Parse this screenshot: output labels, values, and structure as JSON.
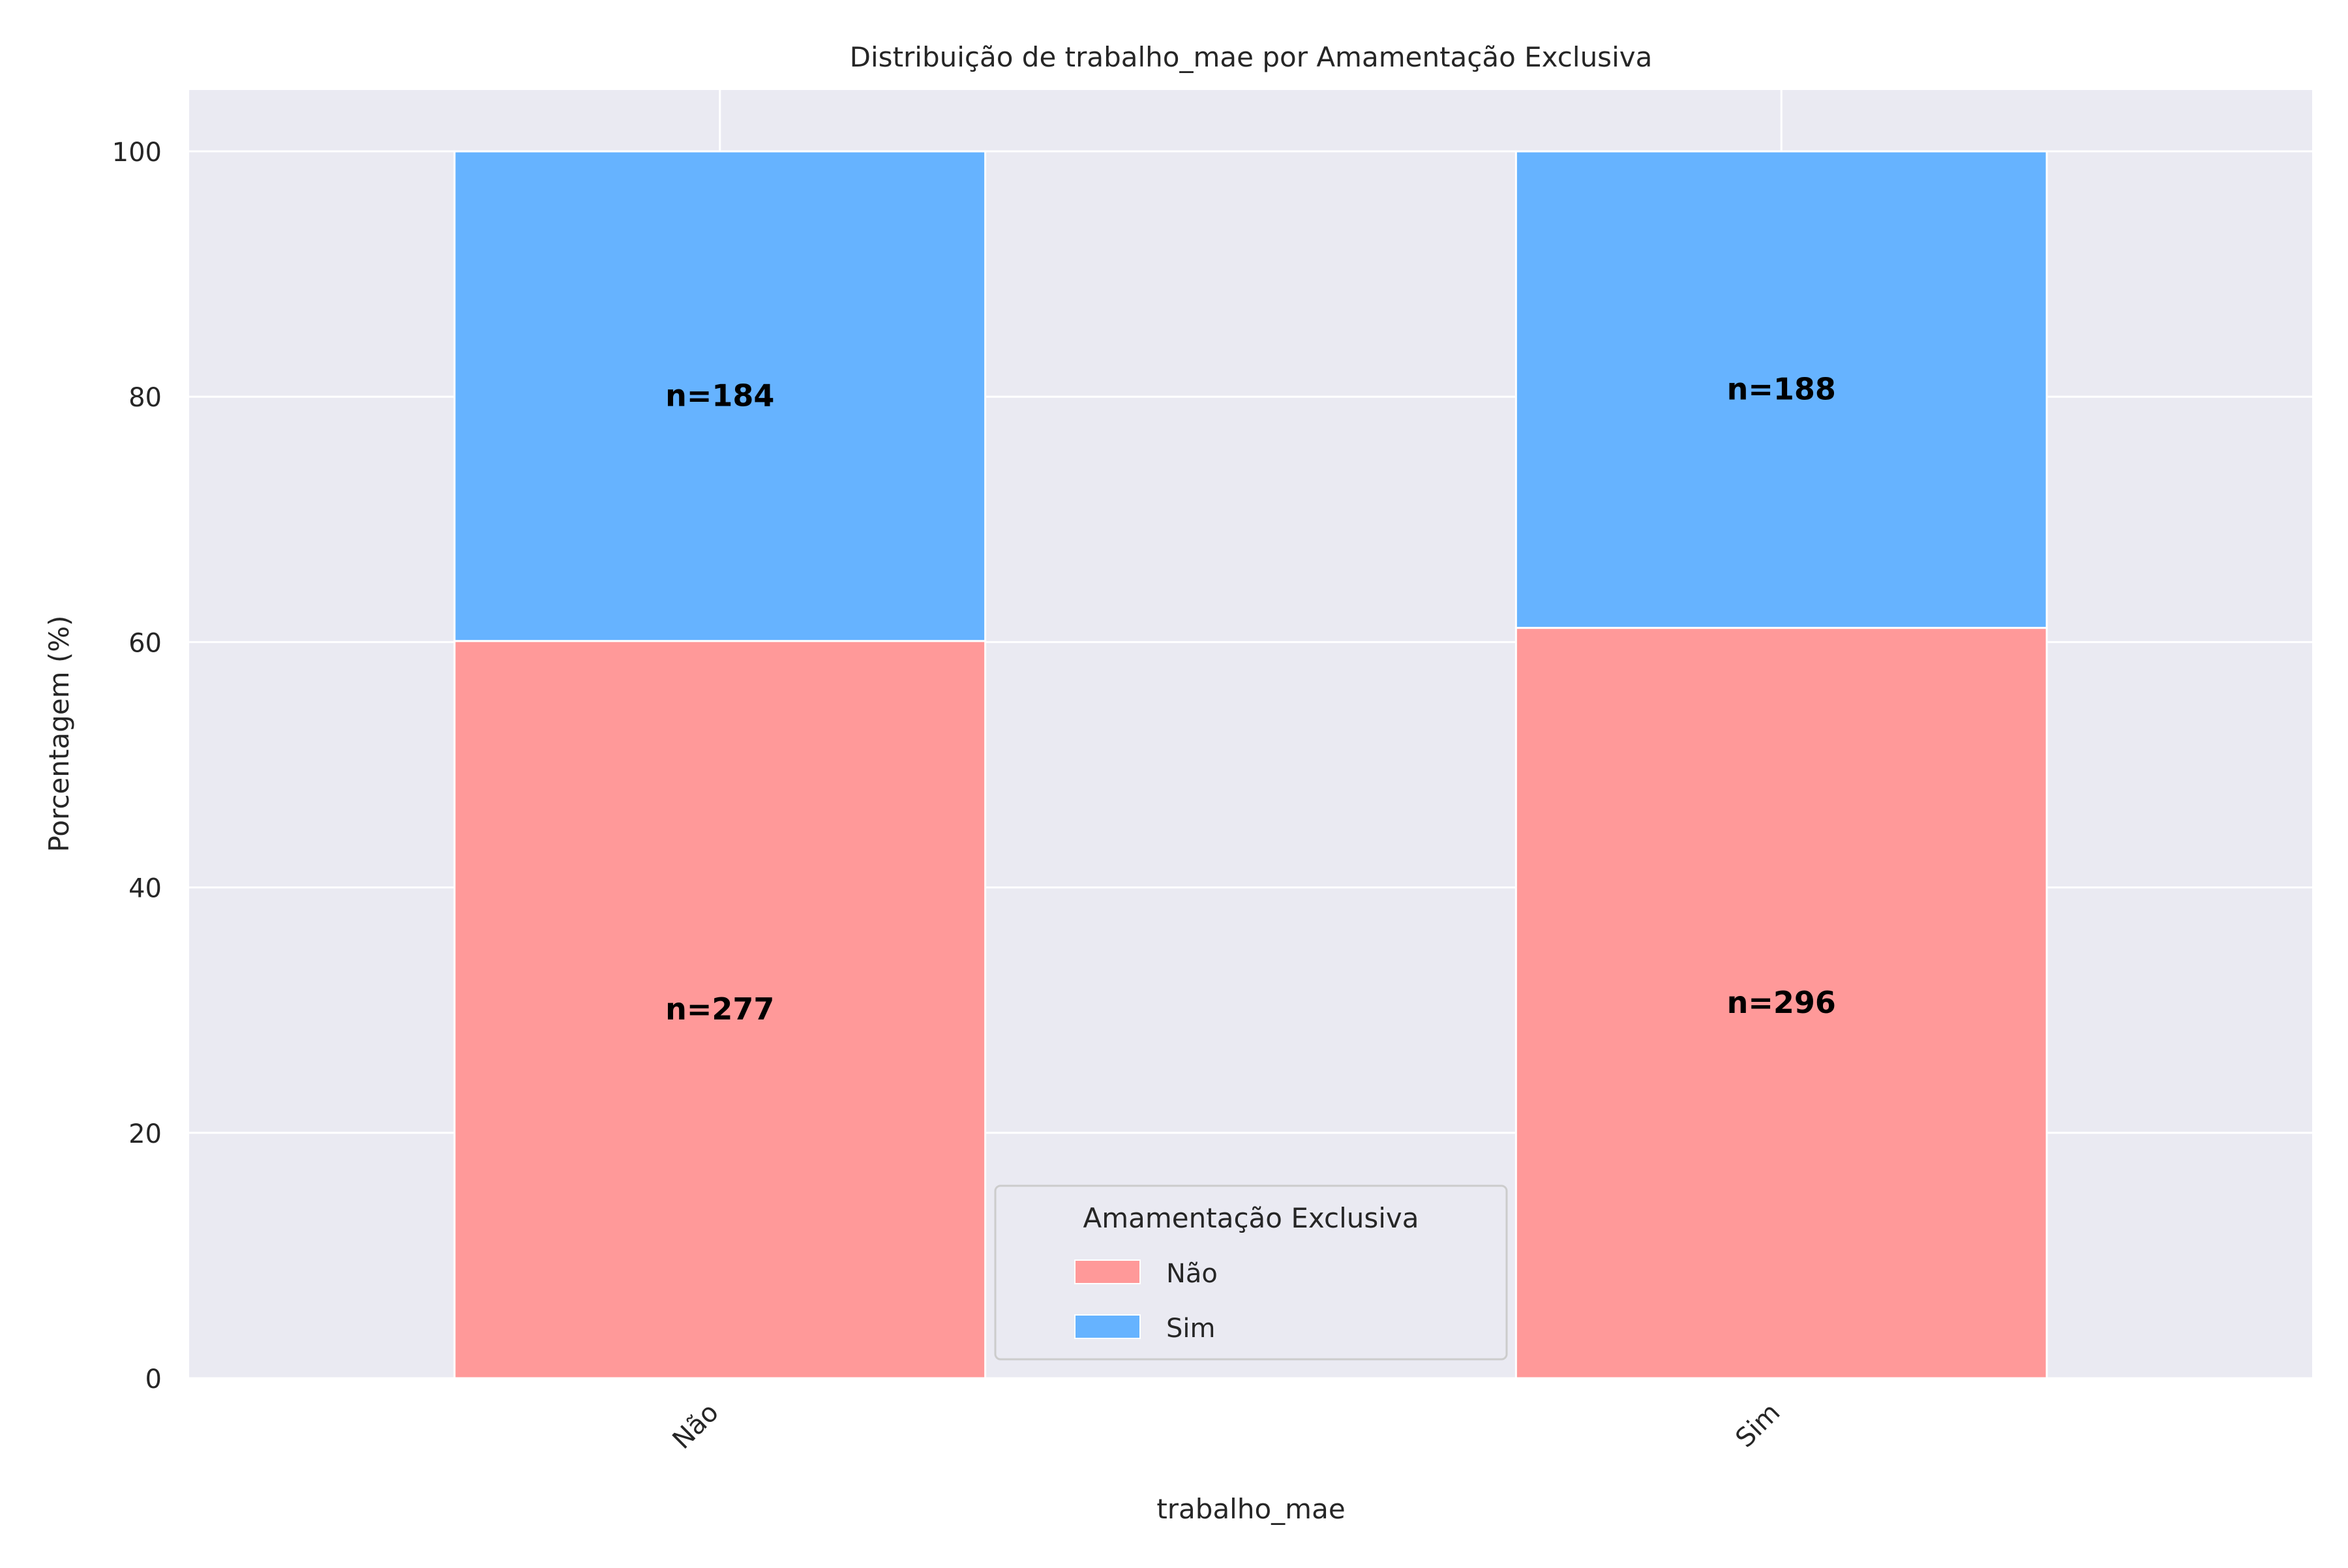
{
  "chart_data": {
    "type": "bar",
    "stacked": true,
    "title": "Distribuição de trabalho_mae por Amamentação Exclusiva",
    "xlabel": "trabalho_mae",
    "ylabel": "Porcentagem (%)",
    "categories": [
      "Não",
      "Sim"
    ],
    "ylim": [
      0,
      105
    ],
    "yticks": [
      0,
      20,
      40,
      60,
      80,
      100
    ],
    "grid": true,
    "legend": {
      "title": "Amamentação Exclusiva",
      "placement": "lower-center"
    },
    "series": [
      {
        "name": "Não",
        "color": "#ff9999",
        "values": [
          60.09,
          61.16
        ],
        "counts": [
          "n=277",
          "n=296"
        ]
      },
      {
        "name": "Sim",
        "color": "#66b3ff",
        "values": [
          39.91,
          38.84
        ],
        "counts": [
          "n=184",
          "n=188"
        ]
      }
    ]
  }
}
